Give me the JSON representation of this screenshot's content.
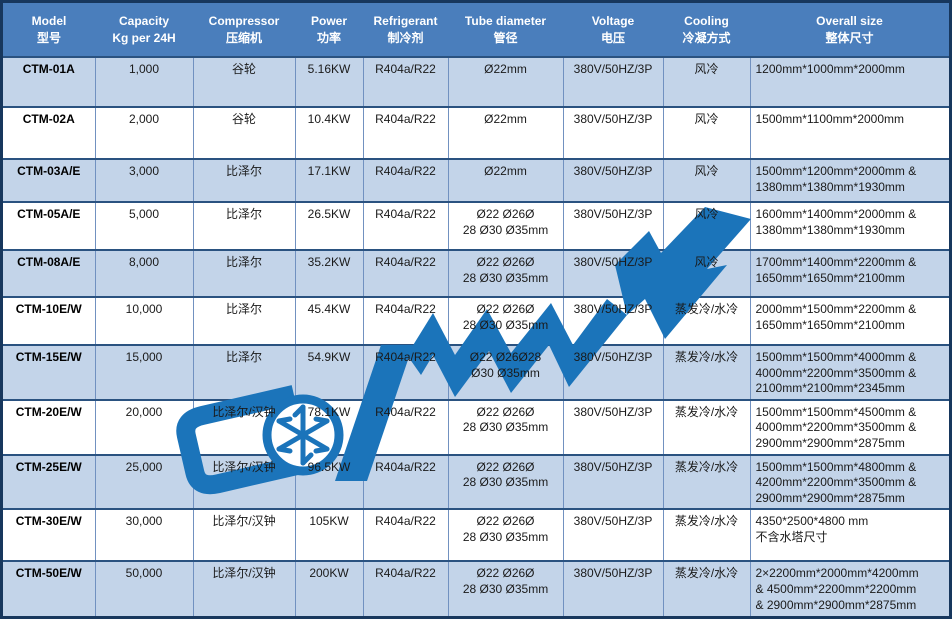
{
  "table": {
    "columns": [
      {
        "line1": "Model",
        "line2": "型号"
      },
      {
        "line1": "Capacity",
        "line2": "Kg per 24H"
      },
      {
        "line1": "Compressor",
        "line2": "压缩机"
      },
      {
        "line1": "Power",
        "line2": "功率"
      },
      {
        "line1": "Refrigerant",
        "line2": "制冷剂"
      },
      {
        "line1": "Tube diameter",
        "line2": "管径"
      },
      {
        "line1": "Voltage",
        "line2": "电压"
      },
      {
        "line1": "Cooling",
        "line2": "冷凝方式"
      },
      {
        "line1": "Overall size",
        "line2": "整体尺寸"
      }
    ],
    "rows": [
      {
        "model": "CTM-01A",
        "capacity": "1,000",
        "compressor": "谷轮",
        "power": "5.16KW",
        "refrigerant": "R404a/R22",
        "tube": "Ø22mm",
        "voltage": "380V/50HZ/3P",
        "cooling": "风冷",
        "overall": "1200mm*1000mm*2000mm"
      },
      {
        "model": "CTM-02A",
        "capacity": "2,000",
        "compressor": "谷轮",
        "power": "10.4KW",
        "refrigerant": "R404a/R22",
        "tube": "Ø22mm",
        "voltage": "380V/50HZ/3P",
        "cooling": "风冷",
        "overall": "1500mm*1100mm*2000mm"
      },
      {
        "model": "CTM-03A/E",
        "capacity": "3,000",
        "compressor": "比泽尔",
        "power": "17.1KW",
        "refrigerant": "R404a/R22",
        "tube": "Ø22mm",
        "voltage": "380V/50HZ/3P",
        "cooling": "风冷",
        "overall": "1500mm*1200mm*2000mm &\n1380mm*1380mm*1930mm"
      },
      {
        "model": "CTM-05A/E",
        "capacity": "5,000",
        "compressor": "比泽尔",
        "power": "26.5KW",
        "refrigerant": "R404a/R22",
        "tube": "Ø22 Ø26Ø\n28 Ø30 Ø35mm",
        "voltage": "380V/50HZ/3P",
        "cooling": "风冷",
        "overall": "1600mm*1400mm*2000mm  &\n1380mm*1380mm*1930mm"
      },
      {
        "model": "CTM-08A/E",
        "capacity": "8,000",
        "compressor": "比泽尔",
        "power": "35.2KW",
        "refrigerant": "R404a/R22",
        "tube": "Ø22 Ø26Ø\n28 Ø30 Ø35mm",
        "voltage": "380V/50HZ/3P",
        "cooling": "风冷",
        "overall": "1700mm*1400mm*2200mm &\n1650mm*1650mm*2100mm"
      },
      {
        "model": "CTM-10E/W",
        "capacity": "10,000",
        "compressor": "比泽尔",
        "power": "45.4KW",
        "refrigerant": "R404a/R22",
        "tube": "Ø22 Ø26Ø\n28 Ø30 Ø35mm",
        "voltage": "380V/50HZ/3P",
        "cooling": "蒸发冷/水冷",
        "overall": "2000mm*1500mm*2200mm  &\n1650mm*1650mm*2100mm"
      },
      {
        "model": "CTM-15E/W",
        "capacity": "15,000",
        "compressor": "比泽尔",
        "power": "54.9KW",
        "refrigerant": "R404a/R22",
        "tube": "Ø22 Ø26Ø28\nØ30 Ø35mm",
        "voltage": "380V/50HZ/3P",
        "cooling": "蒸发冷/水冷",
        "overall": "1500mm*1500mm*4000mm &\n4000mm*2200mm*3500mm &\n2100mm*2100mm*2345mm"
      },
      {
        "model": "CTM-20E/W",
        "capacity": "20,000",
        "compressor": "比泽尔/汉钟",
        "power": "78.1KW",
        "refrigerant": "R404a/R22",
        "tube": "Ø22 Ø26Ø\n28 Ø30 Ø35mm",
        "voltage": "380V/50HZ/3P",
        "cooling": "蒸发冷/水冷",
        "overall": "1500mm*1500mm*4500mm &\n4000mm*2200mm*3500mm &\n2900mm*2900mm*2875mm"
      },
      {
        "model": "CTM-25E/W",
        "capacity": "25,000",
        "compressor": "比泽尔/汉钟",
        "power": "96.5KW",
        "refrigerant": "R404a/R22",
        "tube": "Ø22 Ø26Ø\n28 Ø30 Ø35mm",
        "voltage": "380V/50HZ/3P",
        "cooling": "蒸发冷/水冷",
        "overall": "1500mm*1500mm*4800mm &\n4200mm*2200mm*3500mm &\n2900mm*2900mm*2875mm"
      },
      {
        "model": "CTM-30E/W",
        "capacity": "30,000",
        "compressor": "比泽尔/汉钟",
        "power": "105KW",
        "refrigerant": "R404a/R22",
        "tube": "Ø22 Ø26Ø\n28 Ø30 Ø35mm",
        "voltage": "380V/50HZ/3P",
        "cooling": "蒸发冷/水冷",
        "overall": "4350*2500*4800 mm\n不含水塔尺寸"
      },
      {
        "model": "CTM-50E/W",
        "capacity": "50,000",
        "compressor": "比泽尔/汉钟",
        "power": "200KW",
        "refrigerant": "R404a/R22",
        "tube": "Ø22 Ø26Ø\n28 Ø30 Ø35mm",
        "voltage": "380V/50HZ/3P",
        "cooling": "蒸发冷/水冷",
        "overall": "2×2200mm*2000mm*4200mm\n& 4500mm*2200mm*2200mm\n& 2900mm*2900mm*2875mm"
      }
    ]
  },
  "watermark": {
    "icon": "brand-logo-watermark",
    "color": "#1b74ba"
  },
  "colors": {
    "header_bg": "#4a7ebc",
    "header_text": "#ffffff",
    "row_bg": "#ffffff",
    "row_alt_bg": "#c3d4e9",
    "outer_border": "#17375d",
    "h_border": "#2a5280",
    "v_border": "#7191c0",
    "body_text": "#1a1a1a",
    "watermark": "#1b74ba"
  },
  "chart_data": {
    "type": "table",
    "title": "",
    "categories": [
      "CTM-01A",
      "CTM-02A",
      "CTM-03A/E",
      "CTM-05A/E",
      "CTM-08A/E",
      "CTM-10E/W",
      "CTM-15E/W",
      "CTM-20E/W",
      "CTM-25E/W",
      "CTM-30E/W",
      "CTM-50E/W"
    ],
    "series": [
      {
        "name": "Capacity Kg per 24H",
        "values": [
          1000,
          2000,
          3000,
          5000,
          8000,
          10000,
          15000,
          20000,
          25000,
          30000,
          50000
        ]
      },
      {
        "name": "Power (KW)",
        "values": [
          5.16,
          10.4,
          17.1,
          26.5,
          35.2,
          45.4,
          54.9,
          78.1,
          96.5,
          105,
          200
        ]
      }
    ]
  }
}
